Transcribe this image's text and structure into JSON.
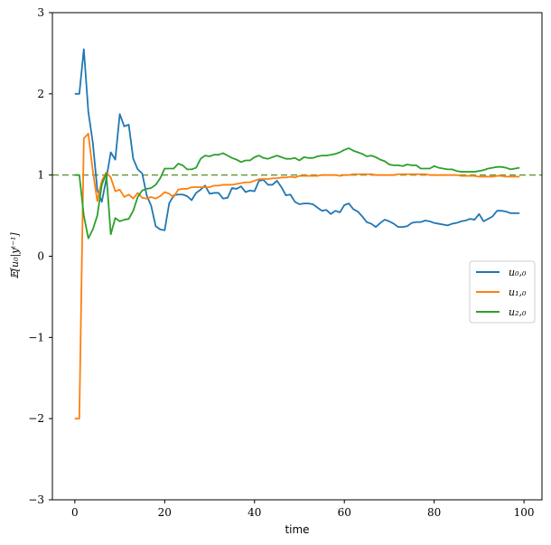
{
  "chart_data": {
    "type": "line",
    "title": "",
    "xlabel": "time",
    "ylabel": "𝔼[u₀|yᵗ⁻¹]",
    "xlim": [
      -5,
      104
    ],
    "ylim": [
      -3,
      3
    ],
    "xticks": [
      0,
      20,
      40,
      60,
      80,
      100
    ],
    "yticks": [
      -3,
      -2,
      -1,
      0,
      1,
      2,
      3
    ],
    "ytick_labels": [
      "−3",
      "−2",
      "−1",
      "0",
      "1",
      "2",
      "3"
    ],
    "grid": false,
    "legend_position": "center-right",
    "reference_line": {
      "y": 1,
      "style": "dashed",
      "color": "#6a9a3e"
    },
    "series": [
      {
        "name": "u₀,₀",
        "color": "#1f77b4",
        "values": [
          2.0,
          2.0,
          2.55,
          1.78,
          1.4,
          0.82,
          0.67,
          0.95,
          1.28,
          1.19,
          1.75,
          1.6,
          1.62,
          1.2,
          1.07,
          1.02,
          0.75,
          0.62,
          0.37,
          0.33,
          0.32,
          0.65,
          0.75,
          0.76,
          0.76,
          0.74,
          0.69,
          0.78,
          0.82,
          0.87,
          0.77,
          0.78,
          0.78,
          0.71,
          0.72,
          0.84,
          0.83,
          0.86,
          0.79,
          0.81,
          0.8,
          0.93,
          0.94,
          0.88,
          0.88,
          0.93,
          0.85,
          0.75,
          0.76,
          0.67,
          0.64,
          0.65,
          0.65,
          0.64,
          0.6,
          0.56,
          0.57,
          0.52,
          0.56,
          0.54,
          0.63,
          0.65,
          0.58,
          0.55,
          0.49,
          0.42,
          0.4,
          0.36,
          0.41,
          0.45,
          0.43,
          0.4,
          0.36,
          0.36,
          0.37,
          0.41,
          0.42,
          0.42,
          0.44,
          0.43,
          0.41,
          0.4,
          0.39,
          0.38,
          0.4,
          0.41,
          0.43,
          0.44,
          0.46,
          0.45,
          0.52,
          0.43,
          0.46,
          0.49,
          0.56,
          0.56,
          0.55,
          0.53,
          0.53,
          0.53
        ]
      },
      {
        "name": "u₁,₀",
        "color": "#ff7f0e",
        "values": [
          -2.0,
          -2.0,
          1.45,
          1.51,
          1.05,
          0.68,
          0.93,
          1.03,
          0.97,
          0.8,
          0.82,
          0.73,
          0.76,
          0.71,
          0.78,
          0.72,
          0.71,
          0.73,
          0.71,
          0.74,
          0.79,
          0.77,
          0.73,
          0.82,
          0.83,
          0.83,
          0.85,
          0.85,
          0.85,
          0.85,
          0.85,
          0.87,
          0.87,
          0.88,
          0.88,
          0.88,
          0.89,
          0.9,
          0.91,
          0.91,
          0.93,
          0.95,
          0.95,
          0.95,
          0.96,
          0.96,
          0.97,
          0.97,
          0.98,
          0.97,
          0.99,
          0.99,
          0.99,
          0.99,
          0.99,
          1.0,
          1.0,
          1.0,
          1.0,
          0.99,
          1.0,
          1.0,
          1.01,
          1.01,
          1.01,
          1.01,
          1.01,
          1.0,
          1.0,
          1.0,
          1.0,
          1.0,
          1.01,
          1.01,
          1.01,
          1.01,
          1.01,
          1.01,
          1.01,
          1.0,
          1.0,
          1.0,
          1.0,
          1.0,
          1.0,
          1.0,
          0.99,
          0.99,
          0.99,
          0.99,
          0.98,
          0.98,
          0.98,
          0.98,
          0.99,
          0.99,
          0.98,
          0.98,
          0.98,
          0.98
        ]
      },
      {
        "name": "u₂,₀",
        "color": "#2ca02c",
        "values": [
          1.0,
          1.0,
          0.5,
          0.22,
          0.33,
          0.5,
          0.88,
          1.02,
          0.27,
          0.47,
          0.43,
          0.45,
          0.46,
          0.56,
          0.73,
          0.81,
          0.83,
          0.84,
          0.88,
          0.96,
          1.08,
          1.08,
          1.08,
          1.14,
          1.12,
          1.07,
          1.07,
          1.09,
          1.2,
          1.24,
          1.23,
          1.25,
          1.25,
          1.27,
          1.24,
          1.21,
          1.19,
          1.16,
          1.18,
          1.18,
          1.22,
          1.24,
          1.21,
          1.2,
          1.22,
          1.24,
          1.22,
          1.2,
          1.2,
          1.21,
          1.18,
          1.22,
          1.21,
          1.21,
          1.23,
          1.24,
          1.24,
          1.25,
          1.26,
          1.28,
          1.31,
          1.33,
          1.3,
          1.28,
          1.26,
          1.23,
          1.24,
          1.22,
          1.19,
          1.17,
          1.13,
          1.12,
          1.12,
          1.11,
          1.13,
          1.12,
          1.12,
          1.08,
          1.08,
          1.08,
          1.11,
          1.09,
          1.08,
          1.07,
          1.07,
          1.05,
          1.04,
          1.04,
          1.04,
          1.04,
          1.05,
          1.06,
          1.08,
          1.09,
          1.1,
          1.1,
          1.09,
          1.07,
          1.08,
          1.09
        ]
      }
    ]
  }
}
